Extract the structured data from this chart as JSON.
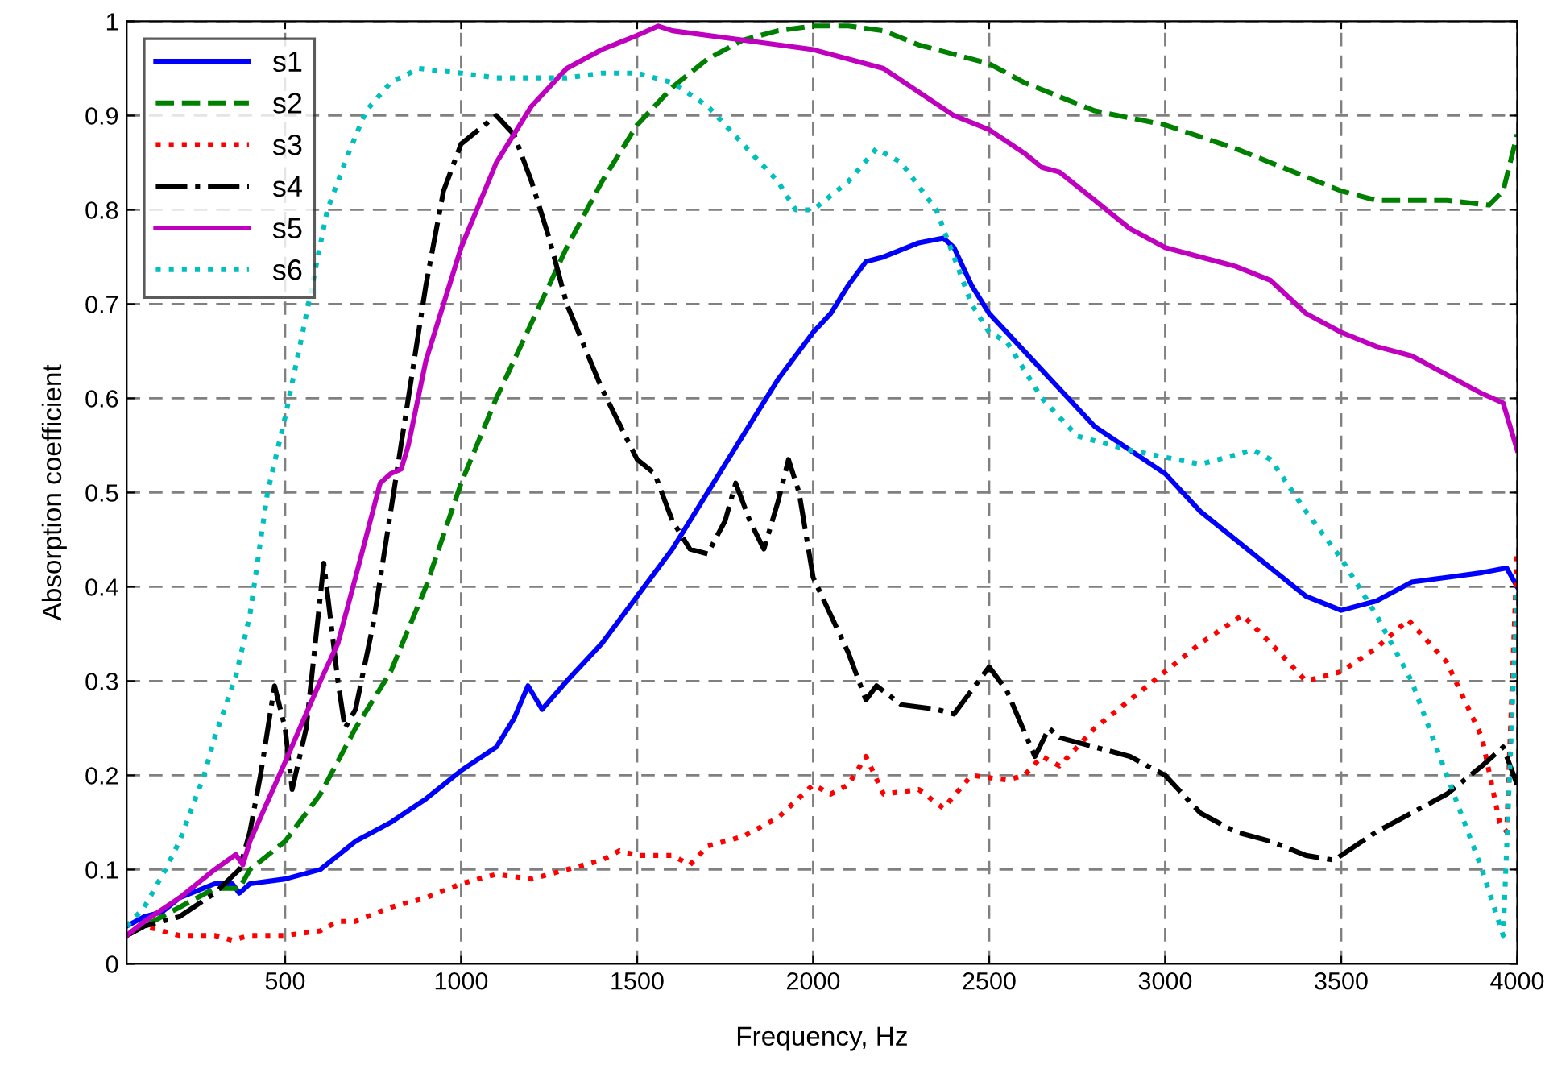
{
  "chart_data": {
    "type": "line",
    "xlabel": "Frequency, Hz",
    "ylabel": "Absorption coefficient",
    "xlim": [
      50,
      4000
    ],
    "ylim": [
      0,
      1
    ],
    "xticks": [
      500,
      1000,
      1500,
      2000,
      2500,
      3000,
      3500,
      4000
    ],
    "yticks": [
      0,
      0.1,
      0.2,
      0.3,
      0.4,
      0.5,
      0.6,
      0.7,
      0.8,
      0.9,
      1
    ],
    "grid": true,
    "legend": "top left",
    "series": [
      {
        "name": "s1",
        "color": "#0000ff",
        "line_style": "solid",
        "x": [
          50,
          100,
          150,
          200,
          300,
          350,
          370,
          400,
          500,
          600,
          700,
          800,
          900,
          1000,
          1100,
          1150,
          1190,
          1230,
          1300,
          1400,
          1500,
          1600,
          1700,
          1800,
          1900,
          2000,
          2050,
          2100,
          2150,
          2200,
          2300,
          2370,
          2400,
          2450,
          2500,
          2600,
          2700,
          2800,
          3000,
          3100,
          3200,
          3300,
          3400,
          3500,
          3600,
          3700,
          3800,
          3900,
          3970,
          4000
        ],
        "values": [
          0.04,
          0.05,
          0.055,
          0.07,
          0.085,
          0.085,
          0.075,
          0.085,
          0.09,
          0.1,
          0.13,
          0.15,
          0.175,
          0.205,
          0.23,
          0.26,
          0.295,
          0.27,
          0.3,
          0.34,
          0.39,
          0.44,
          0.5,
          0.56,
          0.62,
          0.67,
          0.69,
          0.72,
          0.745,
          0.75,
          0.765,
          0.77,
          0.76,
          0.72,
          0.69,
          0.65,
          0.61,
          0.57,
          0.52,
          0.48,
          0.45,
          0.42,
          0.39,
          0.375,
          0.385,
          0.405,
          0.41,
          0.415,
          0.42,
          0.4
        ]
      },
      {
        "name": "s2",
        "color": "#008000",
        "line_style": "dashed",
        "x": [
          50,
          100,
          200,
          300,
          370,
          400,
          500,
          600,
          700,
          800,
          900,
          1000,
          1100,
          1200,
          1300,
          1400,
          1500,
          1600,
          1700,
          1800,
          1900,
          2000,
          2100,
          2200,
          2300,
          2400,
          2500,
          2600,
          2700,
          2800,
          3000,
          3200,
          3400,
          3500,
          3600,
          3800,
          3920,
          3960,
          4000
        ],
        "values": [
          0.03,
          0.04,
          0.06,
          0.08,
          0.08,
          0.1,
          0.13,
          0.18,
          0.25,
          0.31,
          0.4,
          0.51,
          0.6,
          0.68,
          0.76,
          0.83,
          0.89,
          0.93,
          0.96,
          0.98,
          0.99,
          0.995,
          0.995,
          0.99,
          0.975,
          0.965,
          0.955,
          0.935,
          0.92,
          0.905,
          0.89,
          0.865,
          0.835,
          0.82,
          0.81,
          0.81,
          0.805,
          0.82,
          0.88
        ]
      },
      {
        "name": "s3",
        "color": "#ff0000",
        "line_style": "dotted",
        "x": [
          50,
          100,
          150,
          200,
          300,
          350,
          400,
          500,
          600,
          650,
          700,
          800,
          900,
          1000,
          1100,
          1200,
          1300,
          1400,
          1450,
          1500,
          1600,
          1650,
          1700,
          1800,
          1900,
          2000,
          2050,
          2100,
          2150,
          2200,
          2300,
          2370,
          2450,
          2550,
          2600,
          2650,
          2700,
          2800,
          2900,
          3000,
          3100,
          3220,
          3300,
          3400,
          3500,
          3600,
          3690,
          3800,
          3900,
          3950,
          3970,
          4000
        ],
        "values": [
          0.03,
          0.04,
          0.035,
          0.03,
          0.03,
          0.025,
          0.03,
          0.03,
          0.035,
          0.045,
          0.045,
          0.06,
          0.07,
          0.085,
          0.095,
          0.09,
          0.1,
          0.11,
          0.12,
          0.115,
          0.115,
          0.105,
          0.125,
          0.135,
          0.155,
          0.19,
          0.18,
          0.19,
          0.22,
          0.18,
          0.185,
          0.165,
          0.2,
          0.195,
          0.2,
          0.22,
          0.21,
          0.25,
          0.28,
          0.31,
          0.34,
          0.37,
          0.34,
          0.3,
          0.31,
          0.335,
          0.365,
          0.32,
          0.24,
          0.15,
          0.14,
          0.44
        ]
      },
      {
        "name": "s4",
        "color": "#000000",
        "line_style": "dashdot",
        "x": [
          50,
          100,
          200,
          300,
          370,
          400,
          430,
          470,
          500,
          520,
          560,
          610,
          650,
          670,
          700,
          750,
          800,
          850,
          900,
          950,
          1000,
          1100,
          1150,
          1200,
          1250,
          1300,
          1400,
          1500,
          1550,
          1600,
          1650,
          1700,
          1750,
          1780,
          1820,
          1860,
          1900,
          1930,
          1960,
          2000,
          2100,
          2150,
          2180,
          2250,
          2350,
          2400,
          2450,
          2500,
          2550,
          2630,
          2670,
          2700,
          2800,
          2900,
          3000,
          3100,
          3200,
          3300,
          3400,
          3480,
          3600,
          3700,
          3800,
          3900,
          3960,
          4000
        ],
        "values": [
          0.03,
          0.04,
          0.05,
          0.075,
          0.1,
          0.14,
          0.2,
          0.295,
          0.25,
          0.185,
          0.25,
          0.425,
          0.3,
          0.25,
          0.27,
          0.36,
          0.48,
          0.6,
          0.72,
          0.82,
          0.87,
          0.9,
          0.88,
          0.83,
          0.77,
          0.7,
          0.61,
          0.535,
          0.52,
          0.47,
          0.44,
          0.435,
          0.47,
          0.51,
          0.47,
          0.44,
          0.49,
          0.535,
          0.5,
          0.41,
          0.33,
          0.28,
          0.295,
          0.275,
          0.27,
          0.265,
          0.29,
          0.315,
          0.29,
          0.22,
          0.25,
          0.24,
          0.23,
          0.22,
          0.2,
          0.16,
          0.14,
          0.13,
          0.115,
          0.11,
          0.14,
          0.16,
          0.18,
          0.21,
          0.23,
          0.19
        ]
      },
      {
        "name": "s5",
        "color": "#bf00bf",
        "line_style": "solid",
        "x": [
          50,
          100,
          200,
          300,
          360,
          380,
          400,
          500,
          600,
          650,
          700,
          770,
          800,
          830,
          850,
          900,
          1000,
          1100,
          1200,
          1300,
          1400,
          1500,
          1560,
          1600,
          1800,
          2000,
          2100,
          2200,
          2300,
          2400,
          2500,
          2600,
          2650,
          2700,
          2800,
          2900,
          3000,
          3100,
          3200,
          3300,
          3400,
          3500,
          3600,
          3700,
          3800,
          3900,
          3960,
          4000
        ],
        "values": [
          0.03,
          0.045,
          0.07,
          0.1,
          0.116,
          0.105,
          0.13,
          0.214,
          0.3,
          0.34,
          0.41,
          0.51,
          0.52,
          0.525,
          0.55,
          0.64,
          0.76,
          0.85,
          0.91,
          0.95,
          0.97,
          0.985,
          0.995,
          0.99,
          0.98,
          0.97,
          0.96,
          0.95,
          0.925,
          0.9,
          0.885,
          0.86,
          0.845,
          0.84,
          0.81,
          0.78,
          0.76,
          0.75,
          0.74,
          0.725,
          0.69,
          0.67,
          0.655,
          0.645,
          0.625,
          0.605,
          0.595,
          0.545
        ]
      },
      {
        "name": "s6",
        "color": "#00bfbf",
        "line_style": "dotted",
        "x": [
          50,
          100,
          160,
          200,
          270,
          300,
          360,
          400,
          450,
          500,
          550,
          620,
          680,
          730,
          800,
          880,
          1000,
          1100,
          1200,
          1300,
          1400,
          1500,
          1600,
          1700,
          1800,
          1900,
          1950,
          2000,
          2100,
          2180,
          2250,
          2350,
          2400,
          2450,
          2500,
          2550,
          2650,
          2750,
          2900,
          3100,
          3200,
          3250,
          3300,
          3400,
          3500,
          3600,
          3700,
          3800,
          3900,
          3960,
          4000
        ],
        "values": [
          0.04,
          0.06,
          0.1,
          0.13,
          0.2,
          0.24,
          0.305,
          0.37,
          0.5,
          0.58,
          0.67,
          0.8,
          0.86,
          0.905,
          0.935,
          0.95,
          0.945,
          0.94,
          0.94,
          0.94,
          0.945,
          0.945,
          0.935,
          0.91,
          0.87,
          0.83,
          0.8,
          0.8,
          0.83,
          0.865,
          0.85,
          0.8,
          0.75,
          0.7,
          0.67,
          0.66,
          0.6,
          0.56,
          0.545,
          0.53,
          0.54,
          0.545,
          0.535,
          0.48,
          0.43,
          0.37,
          0.3,
          0.2,
          0.1,
          0.03,
          0.4
        ]
      }
    ]
  }
}
